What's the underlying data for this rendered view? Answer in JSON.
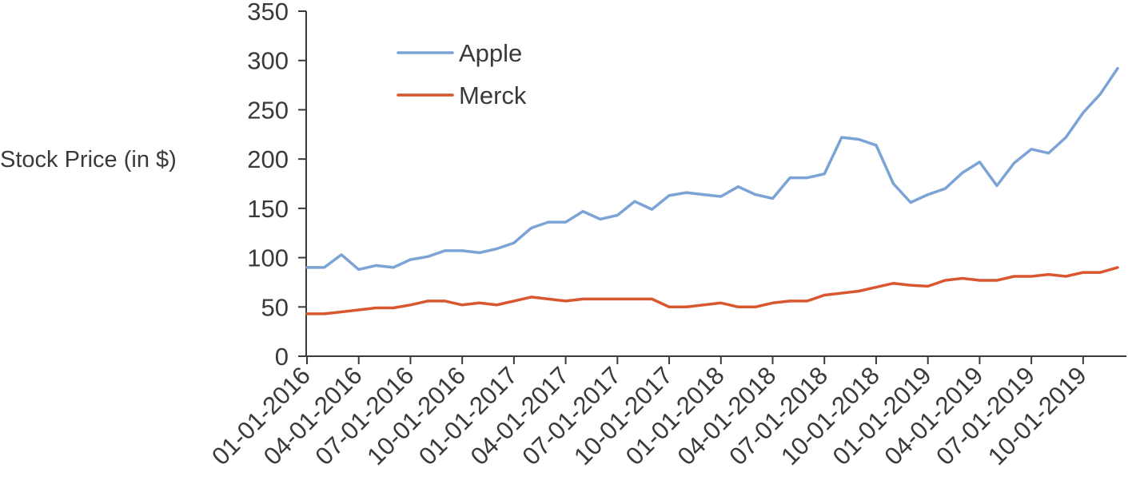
{
  "chart_data": {
    "type": "line",
    "title": "",
    "xlabel": "",
    "ylabel": "Stock Price (in $)",
    "ylim": [
      0,
      350
    ],
    "yticks": [
      "0",
      "50",
      "100",
      "150",
      "200",
      "250",
      "300",
      "350"
    ],
    "xtick_labels": [
      "01-01-2016",
      "04-01-2016",
      "07-01-2016",
      "10-01-2016",
      "01-01-2017",
      "04-01-2017",
      "07-01-2017",
      "10-01-2017",
      "01-01-2018",
      "04-01-2018",
      "07-01-2018",
      "10-01-2018",
      "01-01-2019",
      "04-01-2019",
      "07-01-2019",
      "10-01-2019"
    ],
    "x": [
      "01-01-2016",
      "02-01-2016",
      "03-01-2016",
      "04-01-2016",
      "05-01-2016",
      "06-01-2016",
      "07-01-2016",
      "08-01-2016",
      "09-01-2016",
      "10-01-2016",
      "11-01-2016",
      "12-01-2016",
      "01-01-2017",
      "02-01-2017",
      "03-01-2017",
      "04-01-2017",
      "05-01-2017",
      "06-01-2017",
      "07-01-2017",
      "08-01-2017",
      "09-01-2017",
      "10-01-2017",
      "11-01-2017",
      "12-01-2017",
      "01-01-2018",
      "02-01-2018",
      "03-01-2018",
      "04-01-2018",
      "05-01-2018",
      "06-01-2018",
      "07-01-2018",
      "08-01-2018",
      "09-01-2018",
      "10-01-2018",
      "11-01-2018",
      "12-01-2018",
      "01-01-2019",
      "02-01-2019",
      "03-01-2019",
      "04-01-2019",
      "05-01-2019",
      "06-01-2019",
      "07-01-2019",
      "08-01-2019",
      "09-01-2019",
      "10-01-2019",
      "11-01-2019",
      "12-01-2019"
    ],
    "series": [
      {
        "name": "Apple",
        "color": "#7ba3d6",
        "values": [
          90,
          90,
          103,
          88,
          92,
          90,
          98,
          101,
          107,
          107,
          105,
          109,
          115,
          130,
          136,
          136,
          147,
          139,
          143,
          157,
          149,
          163,
          166,
          164,
          162,
          172,
          164,
          160,
          181,
          181,
          185,
          222,
          220,
          214,
          175,
          156,
          164,
          170,
          186,
          197,
          173,
          196,
          210,
          206,
          222,
          247,
          266,
          292
        ]
      },
      {
        "name": "Merck",
        "color": "#d9572e",
        "values": [
          43,
          43,
          45,
          47,
          49,
          49,
          52,
          56,
          56,
          52,
          54,
          52,
          56,
          60,
          58,
          56,
          58,
          58,
          58,
          58,
          58,
          50,
          50,
          52,
          54,
          50,
          50,
          54,
          56,
          56,
          62,
          64,
          66,
          70,
          74,
          72,
          71,
          77,
          79,
          77,
          77,
          81,
          81,
          83,
          81,
          85,
          85,
          90
        ]
      }
    ],
    "legend": {
      "placement": "top-left",
      "entries": [
        "Apple",
        "Merck"
      ]
    },
    "grid": false
  }
}
